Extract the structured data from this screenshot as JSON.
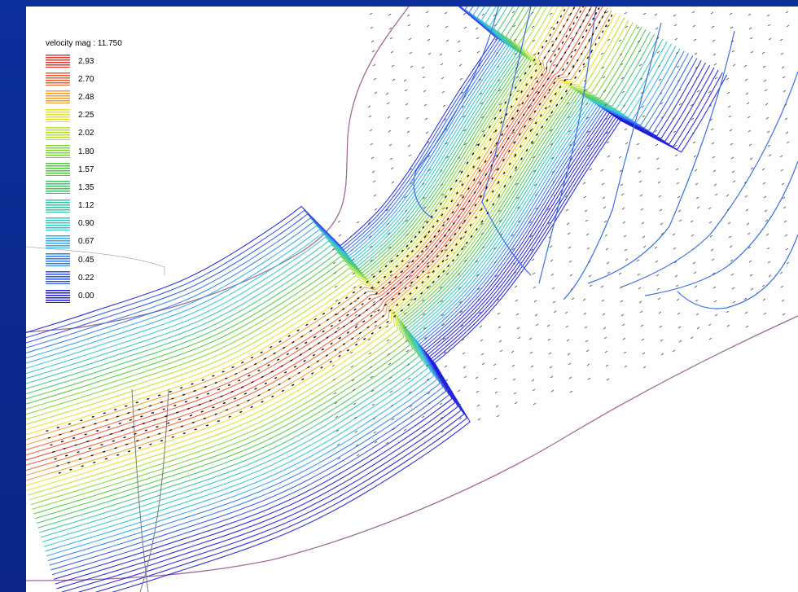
{
  "legend": {
    "title": "velocity mag  : 11.750",
    "items": [
      {
        "label": "2.93",
        "color": "#e8322a"
      },
      {
        "label": "2.70",
        "color": "#ef5a2a"
      },
      {
        "label": "2.48",
        "color": "#f39a2a"
      },
      {
        "label": "2.25",
        "color": "#e8e020"
      },
      {
        "label": "2.02",
        "color": "#b4e028"
      },
      {
        "label": "1.80",
        "color": "#7ed32c"
      },
      {
        "label": "1.57",
        "color": "#4ec83a"
      },
      {
        "label": "1.35",
        "color": "#3cc46a"
      },
      {
        "label": "1.12",
        "color": "#2ec4a2"
      },
      {
        "label": "0.90",
        "color": "#2cc8c8"
      },
      {
        "label": "0.67",
        "color": "#2aa8e8"
      },
      {
        "label": "0.45",
        "color": "#2a78ea"
      },
      {
        "label": "0.22",
        "color": "#2a4ee6"
      },
      {
        "label": "0.00",
        "color": "#1a1ad8"
      }
    ]
  },
  "colors": {
    "background": "#0b2a8f",
    "panel": "#ffffff",
    "boundary": "#a06a9a"
  }
}
